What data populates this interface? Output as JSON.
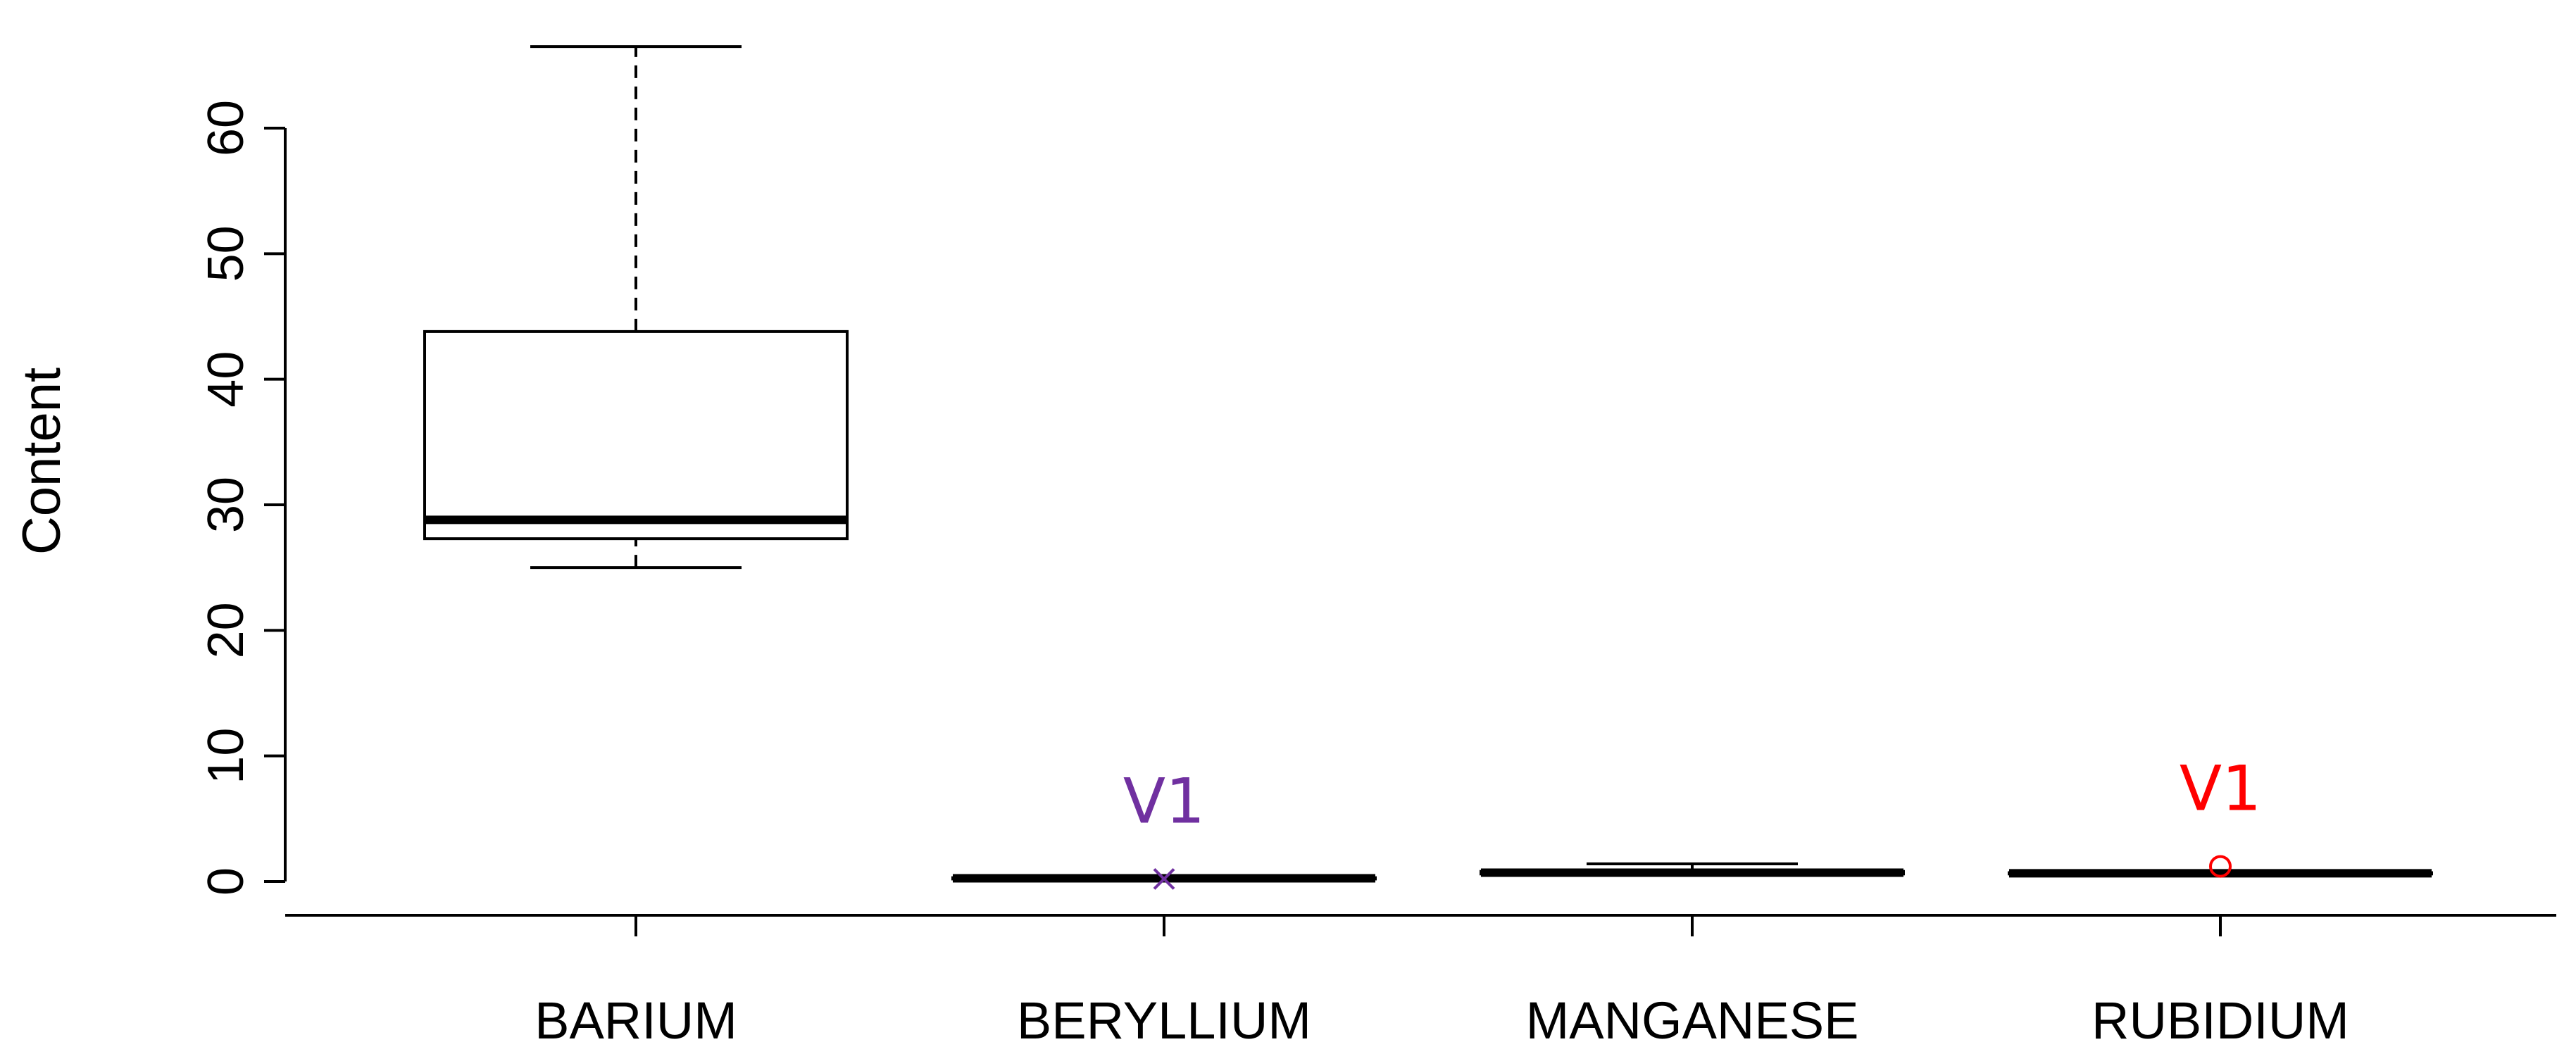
{
  "chart_data": {
    "type": "boxplot",
    "title": "",
    "xlabel": "",
    "ylabel": "Content",
    "ylim": [
      0,
      70
    ],
    "y_ticks": [
      0,
      10,
      20,
      30,
      40,
      50,
      60
    ],
    "y_tick_labels": [
      "0",
      "10",
      "20",
      "30",
      "40",
      "50",
      "60"
    ],
    "grid": false,
    "legend": "none",
    "categories": [
      "BARIUM",
      "BERYLLIUM",
      "MANGANESE",
      "RUBIDIUM"
    ],
    "boxes": [
      {
        "category": "BARIUM",
        "min": 25.0,
        "q1": 27.3,
        "median": 28.8,
        "q3": 43.8,
        "max": 66.5
      },
      {
        "category": "BERYLLIUM",
        "min": 0.2,
        "q1": 0.2,
        "median": 0.25,
        "q3": 0.3,
        "max": 0.3
      },
      {
        "category": "MANGANESE",
        "min": 0.5,
        "q1": 0.6,
        "median": 0.7,
        "q3": 0.8,
        "max": 1.4
      },
      {
        "category": "RUBIDIUM",
        "min": 0.5,
        "q1": 0.6,
        "median": 0.65,
        "q3": 0.7,
        "max": 0.8
      }
    ],
    "points": [
      {
        "category": "BERYLLIUM",
        "value": 0.2,
        "marker": "x",
        "color": "#7030a0",
        "label": "V1"
      },
      {
        "category": "RUBIDIUM",
        "value": 1.2,
        "marker": "circle",
        "color": "#ff0000",
        "label": "V1"
      }
    ]
  }
}
